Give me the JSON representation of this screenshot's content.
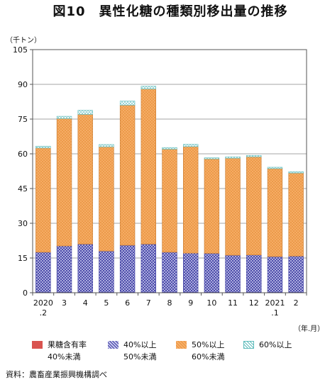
{
  "title": "図10　異性化糖の種類別移出量の推移",
  "unit_label": "（千トン）",
  "x_unit_label": "（年.月）",
  "source": "資料：農畜産業振興機構調べ",
  "colors": {
    "cat1": "#d9534f",
    "cat2": "#3a3aa0",
    "cat3": "#f7b06a",
    "cat4": "#9edede"
  },
  "legend": [
    {
      "line1": "果糖含有率",
      "line2": "40%未満",
      "color_key": "cat1"
    },
    {
      "line1": "40%以上",
      "line2": "50%未満",
      "color_key": "cat2"
    },
    {
      "line1": "50%以上",
      "line2": "60%未満",
      "color_key": "cat3"
    },
    {
      "line1": "60%以上",
      "line2": "",
      "color_key": "cat4"
    }
  ],
  "chart_data": {
    "type": "bar",
    "stacked": true,
    "categories": [
      "2020\n.2",
      "3",
      "4",
      "5",
      "6",
      "7",
      "8",
      "9",
      "10",
      "11",
      "12",
      "2021\n.1",
      "2"
    ],
    "series": [
      {
        "name": "果糖含有率40%未満",
        "values": [
          0.2,
          0.2,
          0.2,
          0.2,
          0.2,
          0.2,
          0.2,
          0.2,
          0.2,
          0.2,
          0.2,
          0.2,
          0.2
        ]
      },
      {
        "name": "40%以上50%未満",
        "values": [
          17.3,
          20.0,
          20.8,
          17.8,
          20.3,
          20.8,
          17.3,
          16.9,
          16.8,
          16.0,
          16.1,
          15.4,
          15.6
        ]
      },
      {
        "name": "50%以上60%未満",
        "values": [
          45.0,
          55.0,
          56.0,
          45.0,
          60.5,
          67.0,
          44.5,
          46.0,
          40.8,
          41.9,
          42.4,
          38.0,
          35.9
        ]
      },
      {
        "name": "60%以上",
        "values": [
          0.8,
          1.0,
          1.8,
          1.0,
          1.8,
          1.2,
          0.7,
          1.0,
          0.5,
          0.6,
          0.6,
          0.6,
          0.6
        ]
      }
    ],
    "ylim": [
      0,
      105
    ],
    "yticks": [
      0,
      15,
      30,
      45,
      60,
      75,
      90,
      105
    ],
    "grid": "horizontal"
  }
}
